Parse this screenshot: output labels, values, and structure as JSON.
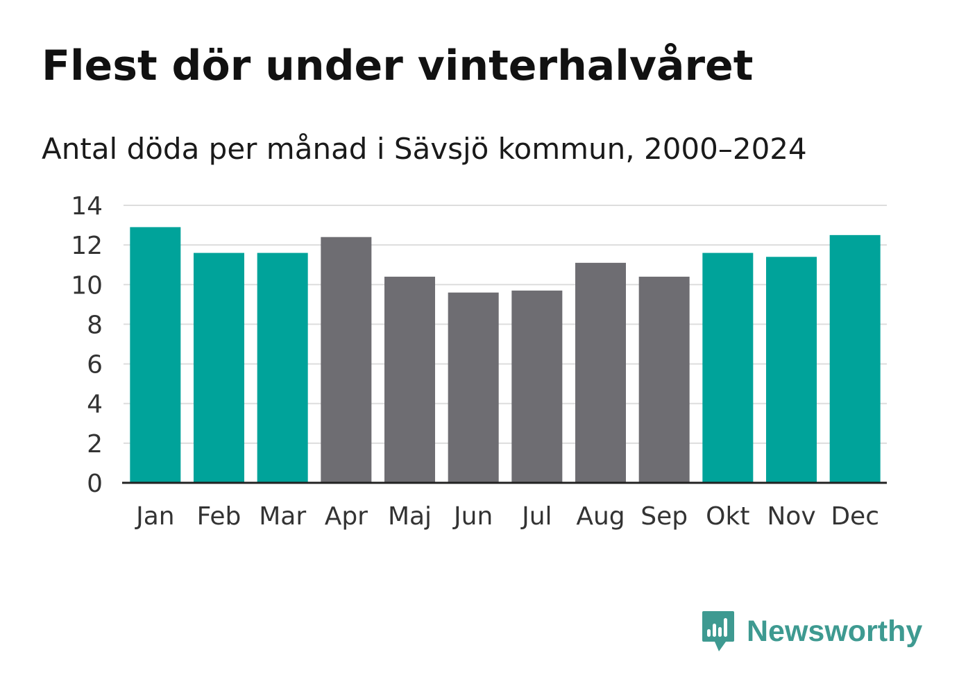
{
  "chart_data": {
    "type": "bar",
    "title": "Flest dör under vinterhalvåret",
    "subtitle": "Antal döda per månad i Sävsjö kommun, 2000–2024",
    "xlabel": "",
    "ylabel": "",
    "categories": [
      "Jan",
      "Feb",
      "Mar",
      "Apr",
      "Maj",
      "Jun",
      "Jul",
      "Aug",
      "Sep",
      "Okt",
      "Nov",
      "Dec"
    ],
    "values": [
      12.9,
      11.6,
      11.6,
      12.4,
      10.4,
      9.6,
      9.7,
      11.1,
      10.4,
      11.6,
      11.4,
      12.5
    ],
    "highlight": [
      true,
      true,
      true,
      false,
      false,
      false,
      false,
      false,
      false,
      true,
      true,
      true
    ],
    "ylim": [
      0,
      14
    ],
    "yticks": [
      0,
      2,
      4,
      6,
      8,
      10,
      12,
      14
    ],
    "grid": true,
    "colors": {
      "highlight": "#00a39a",
      "normal": "#6e6d72",
      "grid": "#dddddd",
      "axis": "#222222",
      "tick_text": "#333333"
    }
  },
  "branding": {
    "logo_text": "Newsworthy",
    "logo_icon": "bar-chart-speech-bubble-icon",
    "logo_color": "#3e9a91"
  }
}
